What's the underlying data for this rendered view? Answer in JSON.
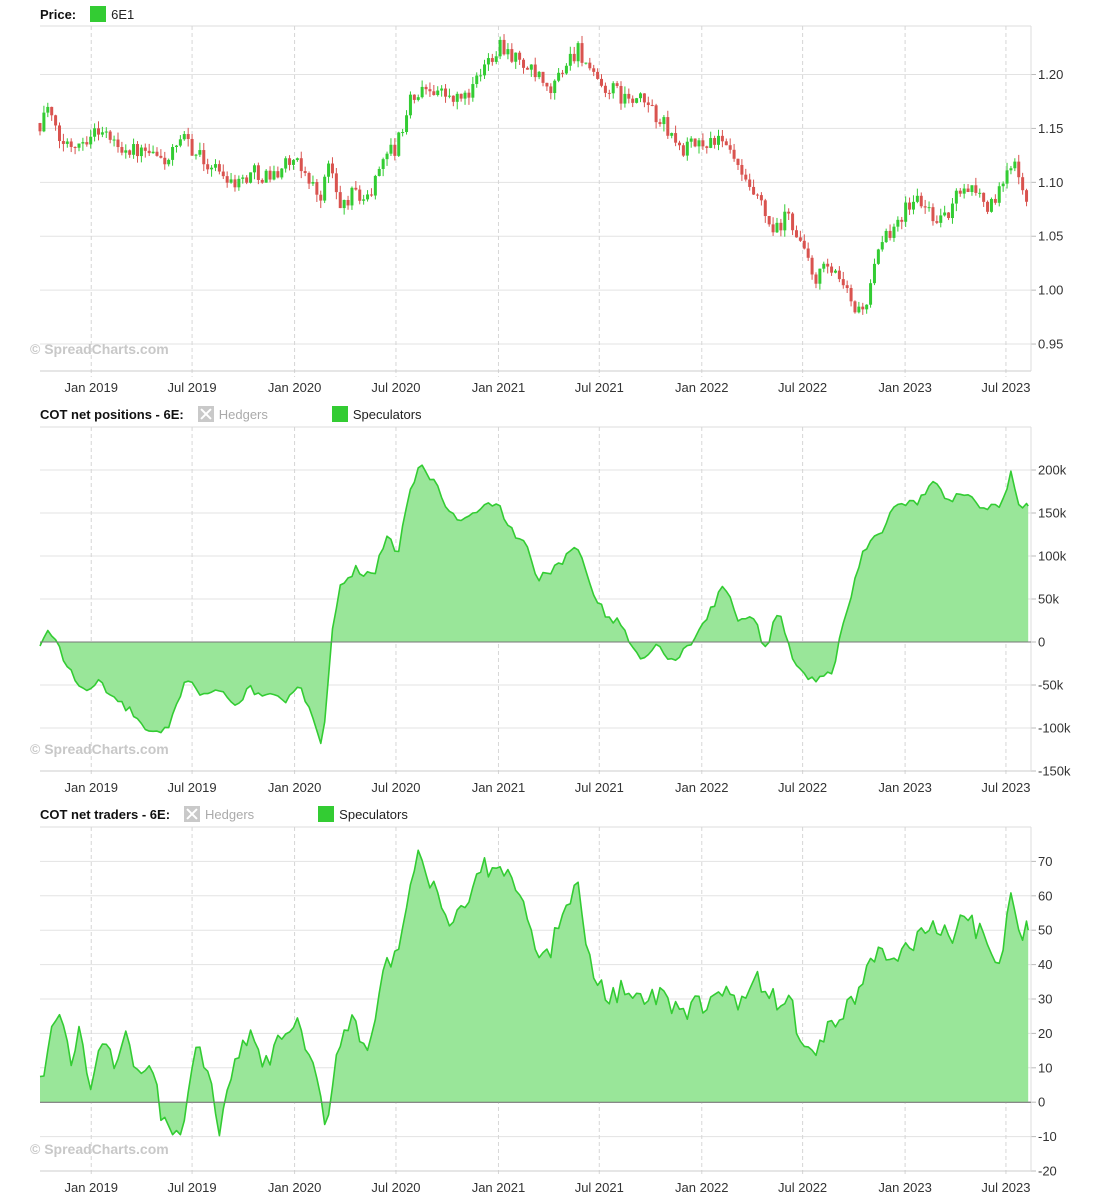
{
  "chart_data": [
    {
      "type": "candlestick",
      "legend_title": "Price:",
      "series": [
        {
          "name": "6E1",
          "color": "#33cc33"
        }
      ],
      "watermark": "© SpreadCharts.com",
      "x_ticks": [
        "Jan 2019",
        "Jul 2019",
        "Jan 2020",
        "Jul 2020",
        "Jan 2021",
        "Jul 2021",
        "Jan 2022",
        "Jul 2022",
        "Jan 2023",
        "Jul 2023"
      ],
      "x_range": [
        "2018-10-01",
        "2023-08-15"
      ],
      "y_ticks": [
        "1.20",
        "1.15",
        "1.10",
        "1.05",
        "1.00",
        "0.95"
      ],
      "ylim": [
        0.925,
        1.245
      ],
      "grid": true,
      "up_color": "#33cc33",
      "down_color": "#d9534f",
      "close_path": [
        [
          "2018-10-01",
          1.155
        ],
        [
          "2018-10-15",
          1.17
        ],
        [
          "2018-11-01",
          1.14
        ],
        [
          "2018-11-20",
          1.135
        ],
        [
          "2018-12-15",
          1.14
        ],
        [
          "2019-01-15",
          1.15
        ],
        [
          "2019-02-15",
          1.135
        ],
        [
          "2019-03-15",
          1.13
        ],
        [
          "2019-04-15",
          1.125
        ],
        [
          "2019-05-15",
          1.12
        ],
        [
          "2019-06-20",
          1.14
        ],
        [
          "2019-07-20",
          1.12
        ],
        [
          "2019-08-20",
          1.11
        ],
        [
          "2019-09-20",
          1.1
        ],
        [
          "2019-10-20",
          1.11
        ],
        [
          "2019-11-20",
          1.105
        ],
        [
          "2019-12-20",
          1.12
        ],
        [
          "2020-01-20",
          1.11
        ],
        [
          "2020-02-15",
          1.085
        ],
        [
          "2020-03-05",
          1.12
        ],
        [
          "2020-03-20",
          1.075
        ],
        [
          "2020-04-15",
          1.09
        ],
        [
          "2020-05-15",
          1.085
        ],
        [
          "2020-06-10",
          1.13
        ],
        [
          "2020-07-01",
          1.13
        ],
        [
          "2020-07-25",
          1.175
        ],
        [
          "2020-09-01",
          1.19
        ],
        [
          "2020-10-15",
          1.175
        ],
        [
          "2020-11-15",
          1.185
        ],
        [
          "2020-12-15",
          1.215
        ],
        [
          "2021-01-05",
          1.23
        ],
        [
          "2021-02-01",
          1.215
        ],
        [
          "2021-03-15",
          1.195
        ],
        [
          "2021-04-01",
          1.18
        ],
        [
          "2021-05-01",
          1.21
        ],
        [
          "2021-05-25",
          1.225
        ],
        [
          "2021-06-25",
          1.19
        ],
        [
          "2021-07-25",
          1.185
        ],
        [
          "2021-08-25",
          1.175
        ],
        [
          "2021-09-20",
          1.175
        ],
        [
          "2021-10-15",
          1.16
        ],
        [
          "2021-11-25",
          1.13
        ],
        [
          "2021-12-25",
          1.135
        ],
        [
          "2022-01-25",
          1.14
        ],
        [
          "2022-02-25",
          1.125
        ],
        [
          "2022-03-15",
          1.1
        ],
        [
          "2022-04-15",
          1.08
        ],
        [
          "2022-05-10",
          1.05
        ],
        [
          "2022-06-05",
          1.07
        ],
        [
          "2022-07-01",
          1.04
        ],
        [
          "2022-07-20",
          1.01
        ],
        [
          "2022-08-15",
          1.02
        ],
        [
          "2022-09-15",
          1.0
        ],
        [
          "2022-10-05",
          0.98
        ],
        [
          "2022-10-25",
          0.99
        ],
        [
          "2022-11-15",
          1.035
        ],
        [
          "2022-12-15",
          1.065
        ],
        [
          "2023-01-20",
          1.085
        ],
        [
          "2023-02-20",
          1.07
        ],
        [
          "2023-03-15",
          1.065
        ],
        [
          "2023-04-15",
          1.1
        ],
        [
          "2023-05-15",
          1.09
        ],
        [
          "2023-06-01",
          1.075
        ],
        [
          "2023-06-25",
          1.095
        ],
        [
          "2023-07-15",
          1.125
        ],
        [
          "2023-08-10",
          1.085
        ]
      ]
    },
    {
      "type": "area",
      "legend_title": "COT net positions - 6E:",
      "series": [
        {
          "name": "Hedgers",
          "visible": false
        },
        {
          "name": "Speculators",
          "visible": true,
          "color": "#33cc33",
          "fill": "#99e699"
        }
      ],
      "watermark": "© SpreadCharts.com",
      "x_ticks": [
        "Jan 2019",
        "Jul 2019",
        "Jan 2020",
        "Jul 2020",
        "Jan 2021",
        "Jul 2021",
        "Jan 2022",
        "Jul 2022",
        "Jan 2023",
        "Jul 2023"
      ],
      "x_range": [
        "2018-10-01",
        "2023-08-15"
      ],
      "y_ticks": [
        "200k",
        "150k",
        "100k",
        "50k",
        "0",
        "-50k",
        "-100k",
        "-150k"
      ],
      "ylim": [
        -150000,
        250000
      ],
      "grid": true,
      "points": [
        [
          "2018-10-01",
          -5000
        ],
        [
          "2018-10-15",
          10000
        ],
        [
          "2018-10-30",
          5000
        ],
        [
          "2018-11-15",
          -25000
        ],
        [
          "2018-12-01",
          -40000
        ],
        [
          "2018-12-20",
          -60000
        ],
        [
          "2019-01-15",
          -45000
        ],
        [
          "2019-02-10",
          -65000
        ],
        [
          "2019-03-01",
          -75000
        ],
        [
          "2019-03-20",
          -85000
        ],
        [
          "2019-04-10",
          -105000
        ],
        [
          "2019-05-01",
          -108000
        ],
        [
          "2019-05-20",
          -100000
        ],
        [
          "2019-06-10",
          -60000
        ],
        [
          "2019-06-25",
          -40000
        ],
        [
          "2019-07-15",
          -60000
        ],
        [
          "2019-08-15",
          -55000
        ],
        [
          "2019-09-15",
          -75000
        ],
        [
          "2019-10-10",
          -55000
        ],
        [
          "2019-11-10",
          -60000
        ],
        [
          "2019-12-10",
          -70000
        ],
        [
          "2020-01-10",
          -55000
        ],
        [
          "2020-02-01",
          -80000
        ],
        [
          "2020-02-20",
          -120000
        ],
        [
          "2020-03-10",
          20000
        ],
        [
          "2020-03-25",
          70000
        ],
        [
          "2020-04-20",
          85000
        ],
        [
          "2020-05-20",
          75000
        ],
        [
          "2020-06-15",
          120000
        ],
        [
          "2020-07-05",
          105000
        ],
        [
          "2020-07-25",
          175000
        ],
        [
          "2020-08-15",
          205000
        ],
        [
          "2020-09-10",
          185000
        ],
        [
          "2020-10-05",
          150000
        ],
        [
          "2020-10-25",
          140000
        ],
        [
          "2020-11-25",
          150000
        ],
        [
          "2020-12-25",
          165000
        ],
        [
          "2021-01-25",
          130000
        ],
        [
          "2021-02-20",
          110000
        ],
        [
          "2021-03-10",
          75000
        ],
        [
          "2021-04-05",
          80000
        ],
        [
          "2021-05-05",
          100000
        ],
        [
          "2021-05-25",
          110000
        ],
        [
          "2021-06-20",
          60000
        ],
        [
          "2021-07-15",
          30000
        ],
        [
          "2021-08-10",
          20000
        ],
        [
          "2021-09-10",
          -20000
        ],
        [
          "2021-10-10",
          -5000
        ],
        [
          "2021-11-10",
          -20000
        ],
        [
          "2021-12-10",
          -5000
        ],
        [
          "2022-01-10",
          30000
        ],
        [
          "2022-02-10",
          65000
        ],
        [
          "2022-03-10",
          25000
        ],
        [
          "2022-04-05",
          30000
        ],
        [
          "2022-04-25",
          -10000
        ],
        [
          "2022-05-20",
          40000
        ],
        [
          "2022-06-10",
          -15000
        ],
        [
          "2022-07-10",
          -40000
        ],
        [
          "2022-08-05",
          -45000
        ],
        [
          "2022-08-25",
          -30000
        ],
        [
          "2022-09-20",
          40000
        ],
        [
          "2022-10-20",
          110000
        ],
        [
          "2022-11-20",
          130000
        ],
        [
          "2022-12-20",
          165000
        ],
        [
          "2023-01-20",
          160000
        ],
        [
          "2023-02-20",
          185000
        ],
        [
          "2023-03-20",
          165000
        ],
        [
          "2023-04-20",
          175000
        ],
        [
          "2023-05-20",
          155000
        ],
        [
          "2023-06-25",
          160000
        ],
        [
          "2023-07-10",
          195000
        ],
        [
          "2023-07-25",
          160000
        ],
        [
          "2023-08-10",
          158000
        ]
      ]
    },
    {
      "type": "area",
      "legend_title": "COT net traders - 6E:",
      "series": [
        {
          "name": "Hedgers",
          "visible": false
        },
        {
          "name": "Speculators",
          "visible": true,
          "color": "#33cc33",
          "fill": "#99e699"
        }
      ],
      "watermark": "© SpreadCharts.com",
      "x_ticks": [
        "Jan 2019",
        "Jul 2019",
        "Jan 2020",
        "Jul 2020",
        "Jan 2021",
        "Jul 2021",
        "Jan 2022",
        "Jul 2022",
        "Jan 2023",
        "Jul 2023"
      ],
      "x_range": [
        "2018-10-01",
        "2023-08-15"
      ],
      "y_ticks": [
        "70",
        "60",
        "50",
        "40",
        "30",
        "20",
        "10",
        "0",
        "-10",
        "-20"
      ],
      "ylim": [
        -20,
        80
      ],
      "grid": true,
      "points": [
        [
          "2018-10-01",
          5
        ],
        [
          "2018-10-20",
          20
        ],
        [
          "2018-11-05",
          26
        ],
        [
          "2018-11-25",
          10
        ],
        [
          "2018-12-10",
          22
        ],
        [
          "2018-12-30",
          3
        ],
        [
          "2019-01-20",
          18
        ],
        [
          "2019-02-10",
          10
        ],
        [
          "2019-03-01",
          22
        ],
        [
          "2019-03-25",
          10
        ],
        [
          "2019-04-20",
          8
        ],
        [
          "2019-05-10",
          -5
        ],
        [
          "2019-06-01",
          -12
        ],
        [
          "2019-06-15",
          -5
        ],
        [
          "2019-07-05",
          17
        ],
        [
          "2019-07-25",
          10
        ],
        [
          "2019-08-20",
          -8
        ],
        [
          "2019-09-10",
          7
        ],
        [
          "2019-10-10",
          20
        ],
        [
          "2019-11-10",
          10
        ],
        [
          "2019-12-10",
          20
        ],
        [
          "2020-01-10",
          22
        ],
        [
          "2020-02-10",
          5
        ],
        [
          "2020-02-25",
          -8
        ],
        [
          "2020-03-20",
          18
        ],
        [
          "2020-04-15",
          25
        ],
        [
          "2020-05-10",
          15
        ],
        [
          "2020-06-10",
          38
        ],
        [
          "2020-07-10",
          45
        ],
        [
          "2020-08-10",
          73
        ],
        [
          "2020-09-10",
          60
        ],
        [
          "2020-10-05",
          52
        ],
        [
          "2020-11-05",
          58
        ],
        [
          "2020-12-05",
          68
        ],
        [
          "2021-01-05",
          67
        ],
        [
          "2021-02-05",
          64
        ],
        [
          "2021-03-05",
          45
        ],
        [
          "2021-04-01",
          42
        ],
        [
          "2021-05-01",
          60
        ],
        [
          "2021-05-25",
          62
        ],
        [
          "2021-06-20",
          35
        ],
        [
          "2021-07-20",
          30
        ],
        [
          "2021-08-20",
          35
        ],
        [
          "2021-09-20",
          28
        ],
        [
          "2021-10-20",
          32
        ],
        [
          "2021-11-20",
          25
        ],
        [
          "2021-12-20",
          28
        ],
        [
          "2022-01-20",
          30
        ],
        [
          "2022-02-20",
          32
        ],
        [
          "2022-03-20",
          28
        ],
        [
          "2022-04-10",
          35
        ],
        [
          "2022-05-10",
          30
        ],
        [
          "2022-06-10",
          28
        ],
        [
          "2022-06-30",
          18
        ],
        [
          "2022-07-25",
          14
        ],
        [
          "2022-08-20",
          22
        ],
        [
          "2022-09-20",
          28
        ],
        [
          "2022-10-15",
          35
        ],
        [
          "2022-11-15",
          45
        ],
        [
          "2022-12-15",
          40
        ],
        [
          "2023-01-20",
          48
        ],
        [
          "2023-02-20",
          52
        ],
        [
          "2023-03-20",
          48
        ],
        [
          "2023-04-20",
          53
        ],
        [
          "2023-05-20",
          48
        ],
        [
          "2023-06-20",
          40
        ],
        [
          "2023-07-10",
          58
        ],
        [
          "2023-07-25",
          48
        ],
        [
          "2023-08-10",
          50
        ]
      ]
    }
  ]
}
